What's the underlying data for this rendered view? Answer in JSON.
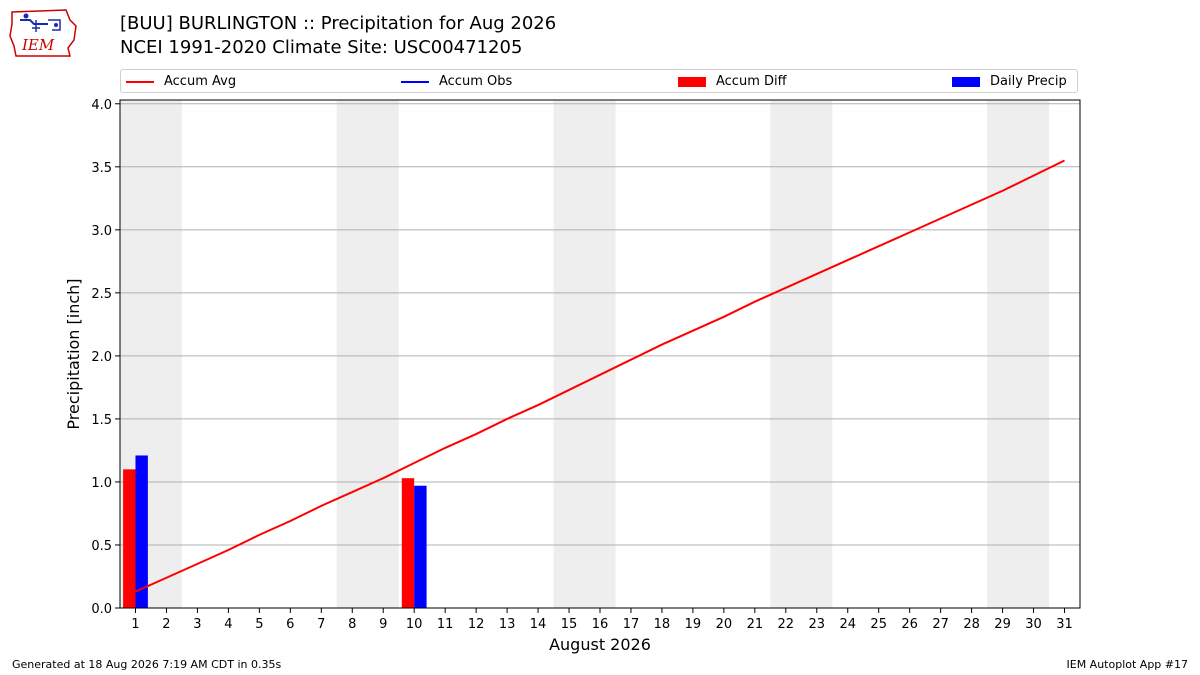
{
  "header": {
    "title_line1": "[BUU] BURLINGTON :: Precipitation for Aug 2026",
    "title_line2": "NCEI 1991-2020 Climate Site: USC00471205",
    "logo_text": "IEM"
  },
  "legend": {
    "accum_avg": "Accum Avg",
    "accum_obs": "Accum Obs",
    "accum_diff": "Accum Diff",
    "daily_precip": "Daily Precip"
  },
  "footer": {
    "generated": "Generated at 18 Aug 2026 7:19 AM CDT in 0.35s",
    "app": "IEM Autoplot App #17"
  },
  "colors": {
    "accum_avg": "#ff0000",
    "accum_obs": "#0000ff",
    "accum_diff": "#ff0000",
    "daily_precip": "#0000ff",
    "weekend_band": "#eeeeee",
    "grid": "#b0b0b0"
  },
  "chart_data": {
    "type": "bar",
    "xlabel": "August 2026",
    "ylabel": "Precipitation [inch]",
    "xlim": [
      0.5,
      31.5
    ],
    "ylim": [
      0,
      4.03
    ],
    "yticks": [
      0.0,
      0.5,
      1.0,
      1.5,
      2.0,
      2.5,
      3.0,
      3.5,
      4.0
    ],
    "ytick_labels": [
      "0.0",
      "0.5",
      "1.0",
      "1.5",
      "2.0",
      "2.5",
      "3.0",
      "3.5",
      "4.0"
    ],
    "categories": [
      "1",
      "2",
      "3",
      "4",
      "5",
      "6",
      "7",
      "8",
      "9",
      "10",
      "11",
      "12",
      "13",
      "14",
      "15",
      "16",
      "17",
      "18",
      "19",
      "20",
      "21",
      "22",
      "23",
      "24",
      "25",
      "26",
      "27",
      "28",
      "29",
      "30",
      "31"
    ],
    "grid": "horizontal",
    "legend_position": "top",
    "weekend_bands": [
      [
        1,
        2
      ],
      [
        8,
        9
      ],
      [
        15,
        16
      ],
      [
        22,
        23
      ],
      [
        29,
        30
      ]
    ],
    "series": [
      {
        "name": "Accum Avg",
        "kind": "line",
        "x": [
          1,
          2,
          3,
          4,
          5,
          6,
          7,
          8,
          9,
          10,
          11,
          12,
          13,
          14,
          15,
          16,
          17,
          18,
          19,
          20,
          21,
          22,
          23,
          24,
          25,
          26,
          27,
          28,
          29,
          30,
          31
        ],
        "values": [
          0.13,
          0.24,
          0.35,
          0.46,
          0.58,
          0.69,
          0.81,
          0.92,
          1.03,
          1.15,
          1.27,
          1.38,
          1.5,
          1.61,
          1.73,
          1.85,
          1.97,
          2.09,
          2.2,
          2.31,
          2.43,
          2.54,
          2.65,
          2.76,
          2.87,
          2.98,
          3.09,
          3.2,
          3.31,
          3.43,
          3.55
        ]
      },
      {
        "name": "Accum Diff",
        "kind": "bar",
        "x": [
          1,
          10
        ],
        "values": [
          1.1,
          1.03
        ]
      },
      {
        "name": "Daily Precip",
        "kind": "bar",
        "x": [
          1,
          10
        ],
        "values": [
          1.21,
          0.97
        ]
      }
    ]
  }
}
